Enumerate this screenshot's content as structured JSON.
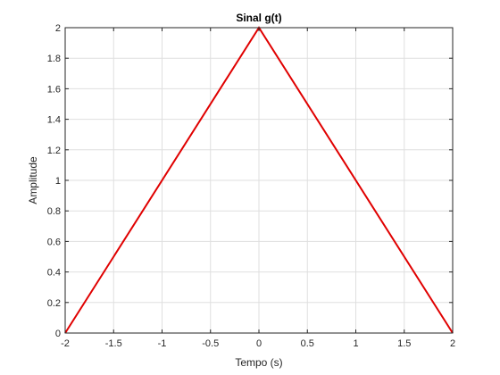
{
  "chart_data": {
    "type": "line",
    "title": "Sinal g(t)",
    "xlabel": "Tempo (s)",
    "ylabel": "Amplitude",
    "xlim": [
      -2,
      2
    ],
    "ylim": [
      0,
      2
    ],
    "xticks": [
      -2,
      -1.5,
      -1,
      -0.5,
      0,
      0.5,
      1,
      1.5,
      2
    ],
    "xtick_labels": [
      "-2",
      "-1.5",
      "-1",
      "-0.5",
      "0",
      "0.5",
      "1",
      "1.5",
      "2"
    ],
    "yticks": [
      0,
      0.2,
      0.4,
      0.6,
      0.8,
      1,
      1.2,
      1.4,
      1.6,
      1.8,
      2
    ],
    "ytick_labels": [
      "0",
      "0.2",
      "0.4",
      "0.6",
      "0.8",
      "1",
      "1.2",
      "1.4",
      "1.6",
      "1.8",
      "2"
    ],
    "grid": true,
    "legend": "none",
    "series": [
      {
        "x": [
          -2,
          0,
          2
        ],
        "y": [
          0,
          2,
          0
        ],
        "color": "#e00000"
      }
    ]
  }
}
